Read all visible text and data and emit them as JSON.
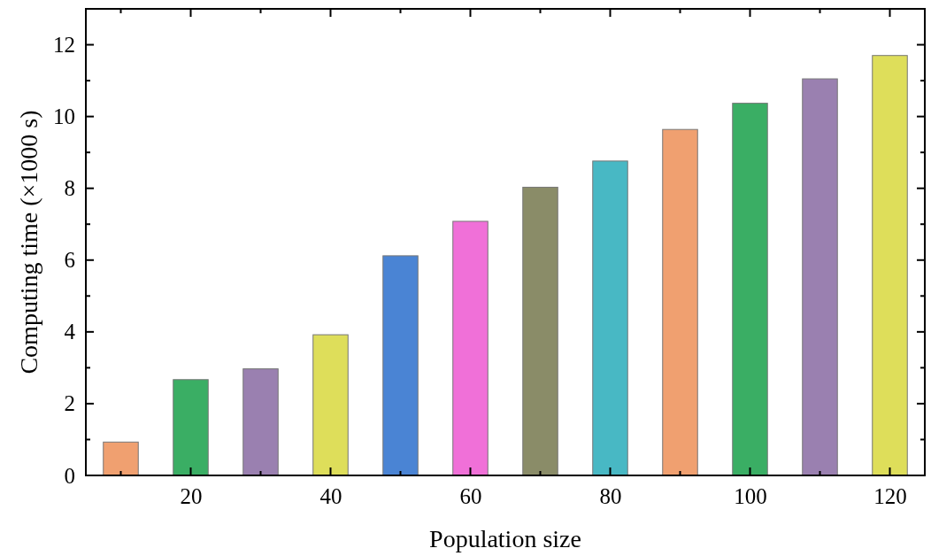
{
  "chart_data": {
    "type": "bar",
    "xlabel": "Population size",
    "ylabel": "Computing time (×1000 s)",
    "x": [
      10,
      20,
      30,
      40,
      50,
      60,
      70,
      80,
      90,
      100,
      110,
      120
    ],
    "values": [
      0.93,
      2.67,
      2.97,
      3.92,
      6.12,
      7.08,
      8.03,
      8.76,
      9.64,
      10.37,
      11.05,
      11.7
    ],
    "colors": [
      "#f0a070",
      "#3aae64",
      "#9a80b0",
      "#dede5a",
      "#4a84d4",
      "#f070d8",
      "#8a8c68",
      "#48b8c4",
      "#f0a070",
      "#3aae64",
      "#9a80b0",
      "#dede5a"
    ],
    "xlim": [
      5,
      125
    ],
    "xticks": [
      {
        "value": 10,
        "label": null
      },
      20,
      {
        "value": 30,
        "label": null
      },
      40,
      {
        "value": 50,
        "label": null
      },
      60,
      {
        "value": 70,
        "label": null
      },
      80,
      {
        "value": 90,
        "label": null
      },
      100,
      {
        "value": 110,
        "label": null
      },
      120
    ],
    "ylim": [
      0,
      13
    ],
    "yticks": [
      0,
      {
        "value": 1,
        "label": null
      },
      2,
      {
        "value": 3,
        "label": null
      },
      4,
      {
        "value": 5,
        "label": null
      },
      6,
      {
        "value": 7,
        "label": null
      },
      8,
      {
        "value": 9,
        "label": null
      },
      10,
      {
        "value": 11,
        "label": null
      },
      12
    ],
    "tick_labels": "xy"
  }
}
